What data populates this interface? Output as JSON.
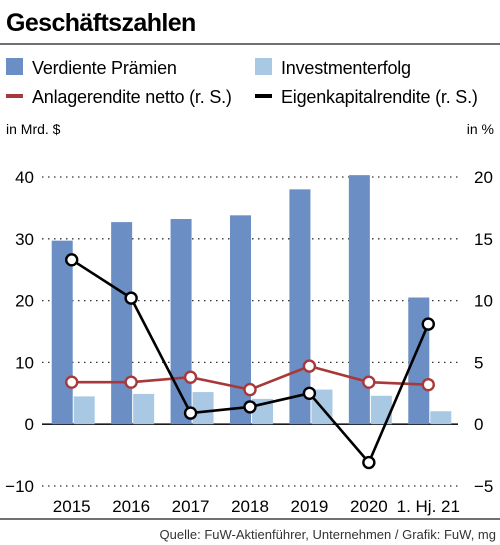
{
  "title": "Geschäftszahlen",
  "source": "Quelle: FuW-Aktienführer, Unternehmen / Grafik: FuW, mg",
  "colors": {
    "primary_bar": "#6b8ec4",
    "secondary_bar": "#a9c8e4",
    "anlage_line": "#a8393a",
    "ek_line": "#000000",
    "text": "#1a1a1a",
    "grid": "#333333"
  },
  "chart_data": {
    "type": "bar",
    "categories": [
      "2015",
      "2016",
      "2017",
      "2018",
      "2019",
      "2020",
      "1. Hj. 21"
    ],
    "y_left": {
      "label": "in Mrd. $",
      "range": [
        -10,
        40
      ],
      "ticks": [
        40,
        30,
        20,
        10,
        0,
        -10
      ]
    },
    "y_right": {
      "label": "in %",
      "range": [
        -5,
        20
      ],
      "ticks": [
        20,
        15,
        10,
        5,
        0,
        -5
      ]
    },
    "grid": true,
    "legend_position": "top",
    "series": [
      {
        "name": "Verdiente Prämien",
        "kind": "bar",
        "axis": "left",
        "values": [
          29.7,
          32.7,
          33.2,
          33.8,
          38,
          40.3,
          20.5
        ]
      },
      {
        "name": "Investmenterfolg",
        "kind": "bar",
        "axis": "left",
        "values": [
          4.5,
          4.9,
          5.2,
          4.1,
          5.6,
          4.6,
          2.1
        ]
      },
      {
        "name": "Anlagerendite netto (r. S.)",
        "kind": "line",
        "axis": "right",
        "values": [
          3.4,
          3.4,
          3.8,
          2.8,
          4.7,
          3.4,
          3.2
        ]
      },
      {
        "name": "Eigenkapitalrendite (r. S.)",
        "kind": "line",
        "axis": "right",
        "values": [
          13.3,
          10.2,
          0.9,
          1.4,
          2.5,
          -3.1,
          8.1
        ]
      }
    ]
  }
}
